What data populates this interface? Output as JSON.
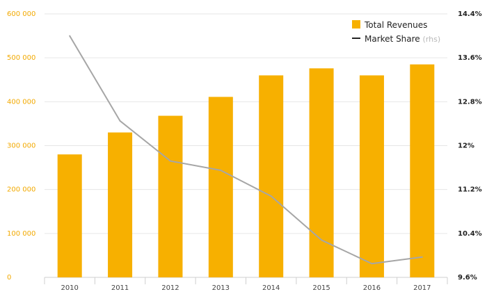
{
  "chart_data": {
    "type": "bar",
    "categories": [
      "2010",
      "2011",
      "2012",
      "2013",
      "2014",
      "2015",
      "2016",
      "2017"
    ],
    "series": [
      {
        "name": "Total Revenues",
        "type": "bar",
        "axis": "left",
        "color": "#f7b000",
        "values": [
          280000,
          330000,
          368000,
          411000,
          460000,
          476000,
          460000,
          485000
        ]
      },
      {
        "name": "Market Share",
        "legend_suffix": "(rhs)",
        "type": "line",
        "axis": "right",
        "color": "#a6a6a6",
        "values": [
          14.0,
          12.45,
          11.72,
          11.55,
          11.08,
          10.28,
          9.85,
          9.97
        ]
      }
    ],
    "y_left": {
      "ticks": [
        0,
        100000,
        200000,
        300000,
        400000,
        500000,
        600000
      ],
      "tick_labels": [
        "0",
        "100 000",
        "200 000",
        "300 000",
        "400 000",
        "500 000",
        "600 000"
      ],
      "ylim": [
        0,
        600000
      ],
      "color": "#f2a900"
    },
    "y_right": {
      "ticks": [
        9.6,
        10.4,
        11.2,
        12.0,
        12.8,
        13.6,
        14.4
      ],
      "tick_labels": [
        "9.6%",
        "10.4%",
        "11.2%",
        "12%",
        "12.8%",
        "13.6%",
        "14.4%"
      ],
      "ylim": [
        9.6,
        14.4
      ],
      "color": "#222222"
    },
    "grid": true,
    "legend_position": "top-right",
    "title": "",
    "xlabel": "",
    "ylabel": ""
  }
}
